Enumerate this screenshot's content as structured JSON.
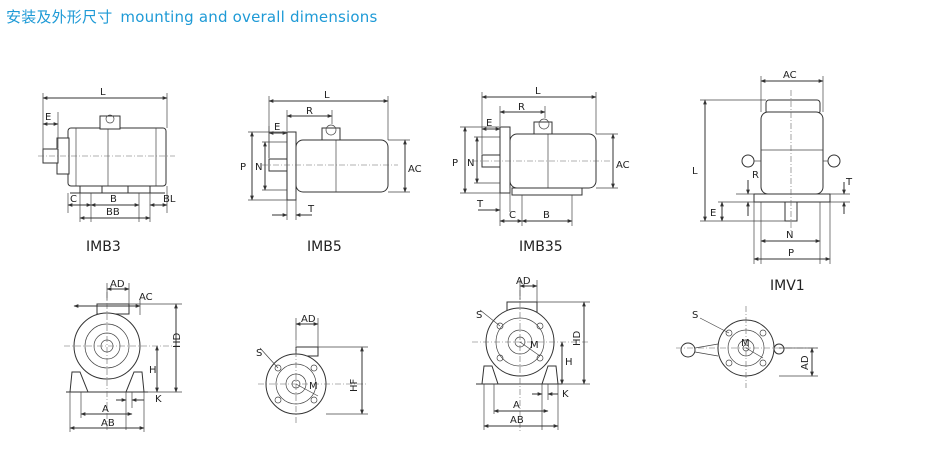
{
  "page": {
    "title_zh": "安装及外形尺寸",
    "title_en": "mounting and overall dimensions"
  },
  "views": {
    "imb3": {
      "caption": "IMB3",
      "labels": {
        "L": "L",
        "E": "E",
        "C": "C",
        "B": "B",
        "BB": "BB",
        "BL": "BL"
      }
    },
    "imb5": {
      "caption": "IMB5",
      "labels": {
        "L": "L",
        "R": "R",
        "E": "E",
        "P": "P",
        "N": "N",
        "T": "T",
        "AC": "AC"
      }
    },
    "imb35": {
      "caption": "IMB35",
      "labels": {
        "L": "L",
        "R": "R",
        "E": "E",
        "P": "P",
        "N": "N",
        "T": "T",
        "C": "C",
        "B": "B",
        "AC": "AC"
      }
    },
    "imv1": {
      "caption": "IMV1",
      "labels": {
        "AC": "AC",
        "L": "L",
        "R": "R",
        "T": "T",
        "E": "E",
        "N": "N",
        "P": "P"
      }
    },
    "end_b3": {
      "labels": {
        "AD": "AD",
        "AC": "AC",
        "HD": "HD",
        "H": "H",
        "K": "K",
        "A": "A",
        "AB": "AB"
      }
    },
    "end_b5": {
      "labels": {
        "AD": "AD",
        "S": "S",
        "M": "M",
        "HF": "HF"
      }
    },
    "end_b35": {
      "labels": {
        "AD": "AD",
        "S": "S",
        "M": "M",
        "HD": "HD",
        "H": "H",
        "K": "K",
        "A": "A",
        "AB": "AB"
      }
    },
    "end_v1": {
      "labels": {
        "S": "S",
        "M": "M",
        "AD": "AD"
      }
    }
  }
}
